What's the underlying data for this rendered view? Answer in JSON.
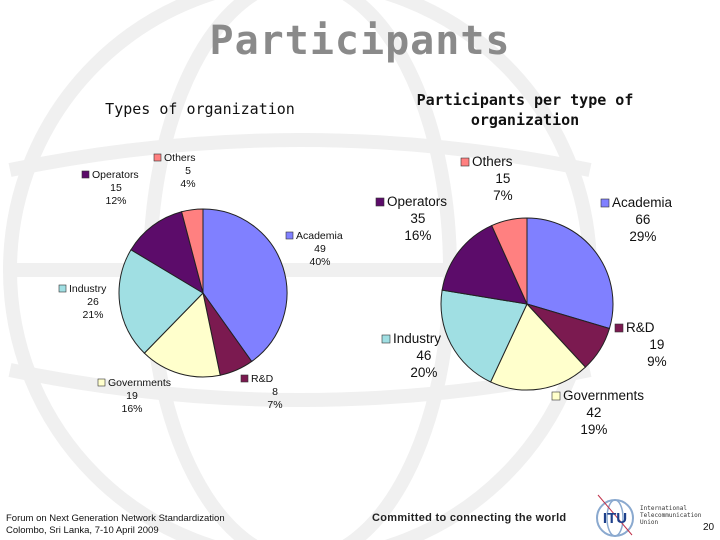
{
  "slide": {
    "title": "Participants",
    "footer": {
      "line1": "Forum on Next Generation Network Standardization",
      "line2": "Colombo, Sri Lanka, 7-10 April 2009",
      "slogan": "Committed to connecting the world",
      "itu_text": [
        "International",
        "Telecommunication",
        "Union"
      ],
      "logo_label": "ITU",
      "page_number": "20"
    }
  },
  "chart_data": [
    {
      "type": "pie",
      "title": "Types of organization",
      "slices": [
        {
          "name": "Academia",
          "value": 49,
          "percent": "40%",
          "color": "#8080ff"
        },
        {
          "name": "R&D",
          "value": 8,
          "percent": "7%",
          "color": "#7b1a50"
        },
        {
          "name": "Governments",
          "value": 19,
          "percent": "16%",
          "color": "#ffffcc"
        },
        {
          "name": "Industry",
          "value": 26,
          "percent": "21%",
          "color": "#a0dfe3"
        },
        {
          "name": "Operators",
          "value": 15,
          "percent": "12%",
          "color": "#5c0c6a"
        },
        {
          "name": "Others",
          "value": 5,
          "percent": "4%",
          "color": "#ff8080"
        }
      ]
    },
    {
      "type": "pie",
      "title": "Participants per type of organization",
      "slices": [
        {
          "name": "Academia",
          "value": 66,
          "percent": "29%",
          "color": "#8080ff"
        },
        {
          "name": "R&D",
          "value": 19,
          "percent": "9%",
          "color": "#7b1a50"
        },
        {
          "name": "Governments",
          "value": 42,
          "percent": "19%",
          "color": "#ffffcc"
        },
        {
          "name": "Industry",
          "value": 46,
          "percent": "20%",
          "color": "#a0dfe3"
        },
        {
          "name": "Operators",
          "value": 35,
          "percent": "16%",
          "color": "#5c0c6a"
        },
        {
          "name": "Others",
          "value": 15,
          "percent": "7%",
          "color": "#ff8080"
        }
      ]
    }
  ]
}
